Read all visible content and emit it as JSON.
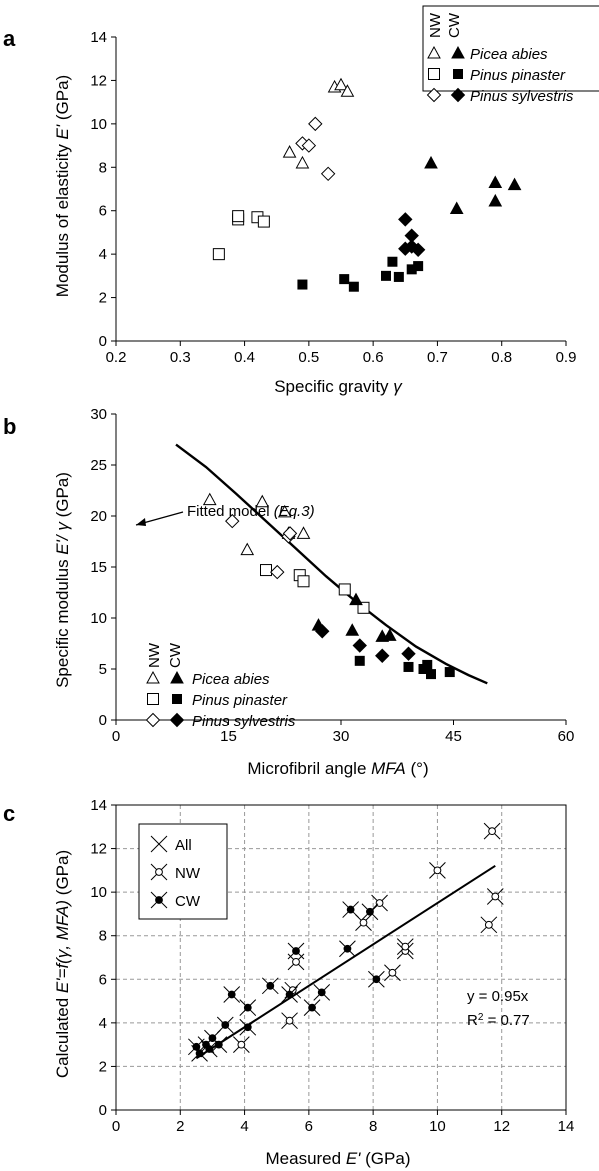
{
  "chart_data": [
    {
      "type": "scatter",
      "panel": "a",
      "xlabel_prefix": "Specific gravity ",
      "xlabel_sym": "γ",
      "ylabel_prefix": "Modulus of elasticity ",
      "ylabel_sym": "E'",
      "ylabel_suffix": " (GPa)",
      "xlim": [
        0.2,
        0.9
      ],
      "ylim": [
        0,
        14
      ],
      "xticks": [
        "0.2",
        "0.3",
        "0.4",
        "0.5",
        "0.6",
        "0.7",
        "0.8",
        "0.9"
      ],
      "yticks": [
        "0",
        "2",
        "4",
        "6",
        "8",
        "10",
        "12",
        "14"
      ],
      "grid": false,
      "legend_position": "top-right",
      "legend_col_headers": [
        "NW",
        "CW"
      ],
      "series": [
        {
          "name": "Picea abies",
          "group": "NW",
          "marker": "triangle-open",
          "points": [
            [
              0.47,
              8.7
            ],
            [
              0.49,
              8.2
            ],
            [
              0.54,
              11.7
            ],
            [
              0.55,
              11.8
            ],
            [
              0.56,
              11.5
            ]
          ]
        },
        {
          "name": "Pinus pinaster",
          "group": "NW",
          "marker": "square-open",
          "points": [
            [
              0.36,
              4.0
            ],
            [
              0.39,
              5.6
            ],
            [
              0.39,
              5.75
            ],
            [
              0.42,
              5.7
            ],
            [
              0.43,
              5.5
            ]
          ]
        },
        {
          "name": "Pinus sylvestris",
          "group": "NW",
          "marker": "diamond-open",
          "points": [
            [
              0.49,
              9.1
            ],
            [
              0.5,
              9.0
            ],
            [
              0.51,
              10.0
            ],
            [
              0.53,
              7.7
            ]
          ]
        },
        {
          "name": "Picea abies",
          "group": "CW",
          "marker": "triangle-filled",
          "points": [
            [
              0.69,
              8.2
            ],
            [
              0.73,
              6.1
            ],
            [
              0.79,
              7.3
            ],
            [
              0.79,
              6.45
            ],
            [
              0.82,
              7.2
            ]
          ]
        },
        {
          "name": "Pinus pinaster",
          "group": "CW",
          "marker": "square-filled",
          "points": [
            [
              0.49,
              2.6
            ],
            [
              0.555,
              2.85
            ],
            [
              0.57,
              2.5
            ],
            [
              0.62,
              3.0
            ],
            [
              0.63,
              3.65
            ],
            [
              0.64,
              2.95
            ],
            [
              0.66,
              3.3
            ],
            [
              0.67,
              3.45
            ]
          ]
        },
        {
          "name": "Pinus sylvestris",
          "group": "CW",
          "marker": "diamond-filled",
          "points": [
            [
              0.65,
              5.6
            ],
            [
              0.65,
              4.25
            ],
            [
              0.66,
              4.85
            ],
            [
              0.66,
              4.35
            ],
            [
              0.67,
              4.2
            ]
          ]
        }
      ]
    },
    {
      "type": "scatter",
      "panel": "b",
      "xlabel_prefix": "Microfibril angle ",
      "xlabel_sym": "MFA",
      "xlabel_suffix": " (°)",
      "ylabel_prefix": "Specific modulus ",
      "ylabel_sym": "E'/ γ",
      "ylabel_suffix": " (GPa)",
      "xlim": [
        0,
        60
      ],
      "ylim": [
        0,
        30
      ],
      "xticks": [
        "0",
        "15",
        "30",
        "45",
        "60"
      ],
      "yticks": [
        "0",
        "5",
        "10",
        "15",
        "20",
        "25",
        "30"
      ],
      "grid": false,
      "legend_position": "bottom-left",
      "legend_col_headers": [
        "NW",
        "CW"
      ],
      "annotation": {
        "text": "Fitted model ",
        "eq": "(Eq.3)"
      },
      "fitted_model": [
        [
          8,
          27
        ],
        [
          12,
          24.8
        ],
        [
          16,
          22.2
        ],
        [
          20,
          19.5
        ],
        [
          24,
          16.8
        ],
        [
          28,
          14.1
        ],
        [
          32,
          11.6
        ],
        [
          36,
          9.3
        ],
        [
          40,
          7.2
        ],
        [
          44,
          5.5
        ],
        [
          47,
          4.4
        ],
        [
          49.5,
          3.6
        ]
      ],
      "series": [
        {
          "name": "Picea abies",
          "group": "NW",
          "marker": "triangle-open",
          "points": [
            [
              12.5,
              21.6
            ],
            [
              17.5,
              16.7
            ],
            [
              19.5,
              21.4
            ],
            [
              22.5,
              20.4
            ],
            [
              23,
              18.3
            ],
            [
              25,
              18.3
            ]
          ]
        },
        {
          "name": "Pinus pinaster",
          "group": "NW",
          "marker": "square-open",
          "points": [
            [
              20,
              14.7
            ],
            [
              24.5,
              14.2
            ],
            [
              25,
              13.6
            ],
            [
              30.5,
              12.8
            ],
            [
              33,
              11.0
            ]
          ]
        },
        {
          "name": "Pinus sylvestris",
          "group": "NW",
          "marker": "diamond-open",
          "points": [
            [
              15.5,
              19.5
            ],
            [
              21.5,
              14.5
            ],
            [
              23,
              18.0
            ],
            [
              23.2,
              18.3
            ]
          ]
        },
        {
          "name": "Picea abies",
          "group": "CW",
          "marker": "triangle-filled",
          "points": [
            [
              27,
              9.3
            ],
            [
              31.5,
              8.8
            ],
            [
              32,
              11.8
            ],
            [
              35.5,
              8.2
            ],
            [
              36.5,
              8.3
            ]
          ]
        },
        {
          "name": "Pinus pinaster",
          "group": "CW",
          "marker": "square-filled",
          "points": [
            [
              32.5,
              5.8
            ],
            [
              39,
              5.2
            ],
            [
              41,
              5.0
            ],
            [
              41.5,
              5.4
            ],
            [
              42,
              4.5
            ],
            [
              44.5,
              4.7
            ]
          ]
        },
        {
          "name": "Pinus sylvestris",
          "group": "CW",
          "marker": "diamond-filled",
          "points": [
            [
              27.5,
              8.7
            ],
            [
              32.5,
              7.3
            ],
            [
              35.5,
              6.3
            ],
            [
              39,
              6.5
            ]
          ]
        }
      ]
    },
    {
      "type": "scatter",
      "panel": "c",
      "xlabel_prefix": "Measured ",
      "xlabel_sym": "E'",
      "xlabel_suffix": " (GPa)",
      "ylabel_prefix": "Calculated ",
      "ylabel_sym": "E'=f(γ, MFA)",
      "ylabel_suffix": " (GPa)",
      "xlim": [
        0,
        14
      ],
      "ylim": [
        0,
        14
      ],
      "xticks": [
        "0",
        "2",
        "4",
        "6",
        "8",
        "10",
        "12",
        "14"
      ],
      "yticks": [
        "0",
        "2",
        "4",
        "6",
        "8",
        "10",
        "12",
        "14"
      ],
      "grid": true,
      "legend_position": "top-left",
      "legend_entries": [
        "All",
        "NW",
        "CW"
      ],
      "regression": {
        "slope": 0.95,
        "x_range": [
          2.5,
          11.8
        ],
        "eq_label": "y = 0.95x",
        "r2_prefix": "R",
        "r2_suffix": " = 0.77"
      },
      "series": [
        {
          "name": "NW",
          "marker": "x-open-circle",
          "points": [
            [
              3.9,
              3.0
            ],
            [
              5.4,
              4.1
            ],
            [
              5.5,
              5.5
            ],
            [
              5.6,
              6.8
            ],
            [
              7.7,
              8.6
            ],
            [
              8.2,
              9.5
            ],
            [
              8.6,
              6.3
            ],
            [
              9.0,
              7.3
            ],
            [
              9.0,
              7.5
            ],
            [
              10.0,
              11.0
            ],
            [
              11.6,
              8.5
            ],
            [
              11.7,
              12.8
            ],
            [
              11.8,
              9.8
            ]
          ]
        },
        {
          "name": "CW",
          "marker": "x-filled-circle",
          "points": [
            [
              2.5,
              2.9
            ],
            [
              2.6,
              2.6
            ],
            [
              2.8,
              3.0
            ],
            [
              2.9,
              2.8
            ],
            [
              3.0,
              3.3
            ],
            [
              3.2,
              3.0
            ],
            [
              3.4,
              3.9
            ],
            [
              3.6,
              5.3
            ],
            [
              4.1,
              4.7
            ],
            [
              4.1,
              3.8
            ],
            [
              4.8,
              5.7
            ],
            [
              5.4,
              5.3
            ],
            [
              5.6,
              7.3
            ],
            [
              6.1,
              4.7
            ],
            [
              6.4,
              5.4
            ],
            [
              7.2,
              7.4
            ],
            [
              7.3,
              9.2
            ],
            [
              8.1,
              6.0
            ],
            [
              7.9,
              9.1
            ]
          ]
        }
      ]
    }
  ]
}
